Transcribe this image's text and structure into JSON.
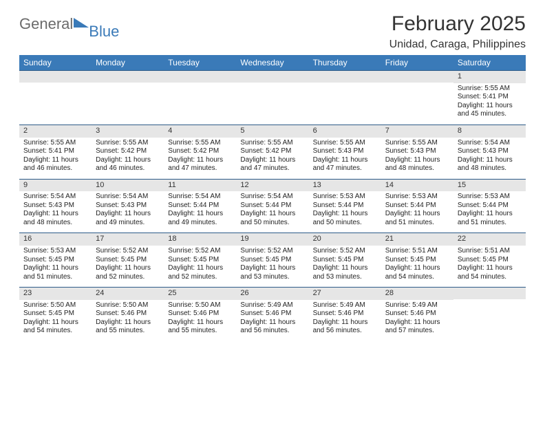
{
  "logo": {
    "word1": "General",
    "word2": "Blue"
  },
  "title": "February 2025",
  "location": "Unidad, Caraga, Philippines",
  "day_names": [
    "Sunday",
    "Monday",
    "Tuesday",
    "Wednesday",
    "Thursday",
    "Friday",
    "Saturday"
  ],
  "colors": {
    "header_bg": "#3a7ab8",
    "header_text": "#ffffff",
    "daynum_bg": "#e6e6e6",
    "row_divider": "#2c5a87",
    "logo_gray": "#6b6b6b",
    "logo_blue": "#3a7ab8"
  },
  "weeks": [
    [
      {
        "n": "",
        "lines": []
      },
      {
        "n": "",
        "lines": []
      },
      {
        "n": "",
        "lines": []
      },
      {
        "n": "",
        "lines": []
      },
      {
        "n": "",
        "lines": []
      },
      {
        "n": "",
        "lines": []
      },
      {
        "n": "1",
        "lines": [
          "Sunrise: 5:55 AM",
          "Sunset: 5:41 PM",
          "Daylight: 11 hours and 45 minutes."
        ]
      }
    ],
    [
      {
        "n": "2",
        "lines": [
          "Sunrise: 5:55 AM",
          "Sunset: 5:41 PM",
          "Daylight: 11 hours and 46 minutes."
        ]
      },
      {
        "n": "3",
        "lines": [
          "Sunrise: 5:55 AM",
          "Sunset: 5:42 PM",
          "Daylight: 11 hours and 46 minutes."
        ]
      },
      {
        "n": "4",
        "lines": [
          "Sunrise: 5:55 AM",
          "Sunset: 5:42 PM",
          "Daylight: 11 hours and 47 minutes."
        ]
      },
      {
        "n": "5",
        "lines": [
          "Sunrise: 5:55 AM",
          "Sunset: 5:42 PM",
          "Daylight: 11 hours and 47 minutes."
        ]
      },
      {
        "n": "6",
        "lines": [
          "Sunrise: 5:55 AM",
          "Sunset: 5:43 PM",
          "Daylight: 11 hours and 47 minutes."
        ]
      },
      {
        "n": "7",
        "lines": [
          "Sunrise: 5:55 AM",
          "Sunset: 5:43 PM",
          "Daylight: 11 hours and 48 minutes."
        ]
      },
      {
        "n": "8",
        "lines": [
          "Sunrise: 5:54 AM",
          "Sunset: 5:43 PM",
          "Daylight: 11 hours and 48 minutes."
        ]
      }
    ],
    [
      {
        "n": "9",
        "lines": [
          "Sunrise: 5:54 AM",
          "Sunset: 5:43 PM",
          "Daylight: 11 hours and 48 minutes."
        ]
      },
      {
        "n": "10",
        "lines": [
          "Sunrise: 5:54 AM",
          "Sunset: 5:43 PM",
          "Daylight: 11 hours and 49 minutes."
        ]
      },
      {
        "n": "11",
        "lines": [
          "Sunrise: 5:54 AM",
          "Sunset: 5:44 PM",
          "Daylight: 11 hours and 49 minutes."
        ]
      },
      {
        "n": "12",
        "lines": [
          "Sunrise: 5:54 AM",
          "Sunset: 5:44 PM",
          "Daylight: 11 hours and 50 minutes."
        ]
      },
      {
        "n": "13",
        "lines": [
          "Sunrise: 5:53 AM",
          "Sunset: 5:44 PM",
          "Daylight: 11 hours and 50 minutes."
        ]
      },
      {
        "n": "14",
        "lines": [
          "Sunrise: 5:53 AM",
          "Sunset: 5:44 PM",
          "Daylight: 11 hours and 51 minutes."
        ]
      },
      {
        "n": "15",
        "lines": [
          "Sunrise: 5:53 AM",
          "Sunset: 5:44 PM",
          "Daylight: 11 hours and 51 minutes."
        ]
      }
    ],
    [
      {
        "n": "16",
        "lines": [
          "Sunrise: 5:53 AM",
          "Sunset: 5:45 PM",
          "Daylight: 11 hours and 51 minutes."
        ]
      },
      {
        "n": "17",
        "lines": [
          "Sunrise: 5:52 AM",
          "Sunset: 5:45 PM",
          "Daylight: 11 hours and 52 minutes."
        ]
      },
      {
        "n": "18",
        "lines": [
          "Sunrise: 5:52 AM",
          "Sunset: 5:45 PM",
          "Daylight: 11 hours and 52 minutes."
        ]
      },
      {
        "n": "19",
        "lines": [
          "Sunrise: 5:52 AM",
          "Sunset: 5:45 PM",
          "Daylight: 11 hours and 53 minutes."
        ]
      },
      {
        "n": "20",
        "lines": [
          "Sunrise: 5:52 AM",
          "Sunset: 5:45 PM",
          "Daylight: 11 hours and 53 minutes."
        ]
      },
      {
        "n": "21",
        "lines": [
          "Sunrise: 5:51 AM",
          "Sunset: 5:45 PM",
          "Daylight: 11 hours and 54 minutes."
        ]
      },
      {
        "n": "22",
        "lines": [
          "Sunrise: 5:51 AM",
          "Sunset: 5:45 PM",
          "Daylight: 11 hours and 54 minutes."
        ]
      }
    ],
    [
      {
        "n": "23",
        "lines": [
          "Sunrise: 5:50 AM",
          "Sunset: 5:45 PM",
          "Daylight: 11 hours and 54 minutes."
        ]
      },
      {
        "n": "24",
        "lines": [
          "Sunrise: 5:50 AM",
          "Sunset: 5:46 PM",
          "Daylight: 11 hours and 55 minutes."
        ]
      },
      {
        "n": "25",
        "lines": [
          "Sunrise: 5:50 AM",
          "Sunset: 5:46 PM",
          "Daylight: 11 hours and 55 minutes."
        ]
      },
      {
        "n": "26",
        "lines": [
          "Sunrise: 5:49 AM",
          "Sunset: 5:46 PM",
          "Daylight: 11 hours and 56 minutes."
        ]
      },
      {
        "n": "27",
        "lines": [
          "Sunrise: 5:49 AM",
          "Sunset: 5:46 PM",
          "Daylight: 11 hours and 56 minutes."
        ]
      },
      {
        "n": "28",
        "lines": [
          "Sunrise: 5:49 AM",
          "Sunset: 5:46 PM",
          "Daylight: 11 hours and 57 minutes."
        ]
      },
      {
        "n": "",
        "lines": []
      }
    ]
  ]
}
